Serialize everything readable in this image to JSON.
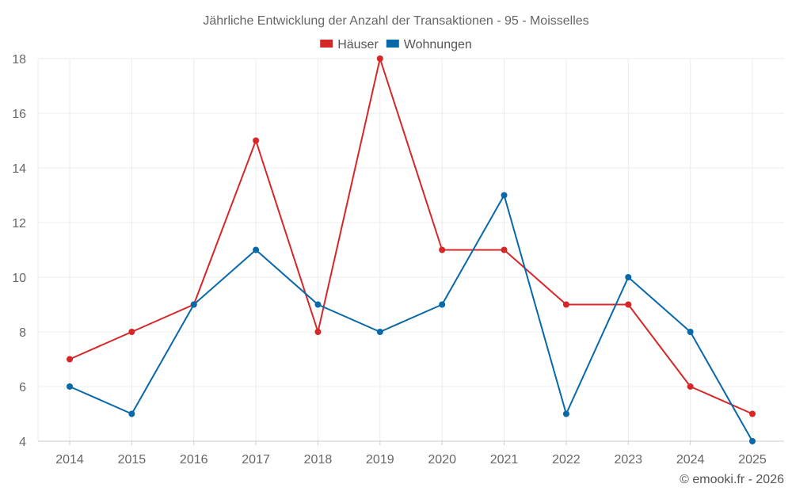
{
  "chart_data": {
    "type": "line",
    "title": "Jährliche Entwicklung der Anzahl der Transaktionen - 95 - Moisselles",
    "categories": [
      "2014",
      "2015",
      "2016",
      "2017",
      "2018",
      "2019",
      "2020",
      "2021",
      "2022",
      "2023",
      "2024",
      "2025"
    ],
    "series": [
      {
        "name": "Häuser",
        "color": "#d62728",
        "values": [
          7,
          8,
          9,
          15,
          8,
          18,
          11,
          11,
          9,
          9,
          6,
          5
        ]
      },
      {
        "name": "Wohnungen",
        "color": "#0868a8",
        "values": [
          6,
          5,
          9,
          11,
          9,
          8,
          9,
          13,
          5,
          10,
          8,
          4
        ]
      }
    ],
    "ylim": [
      4,
      18
    ],
    "yticks": [
      4,
      6,
      8,
      10,
      12,
      14,
      16,
      18
    ],
    "grid": true,
    "legend_position": "top-center",
    "xlabel": "",
    "ylabel": ""
  },
  "footer": {
    "credit": "© emooki.fr - 2026"
  }
}
